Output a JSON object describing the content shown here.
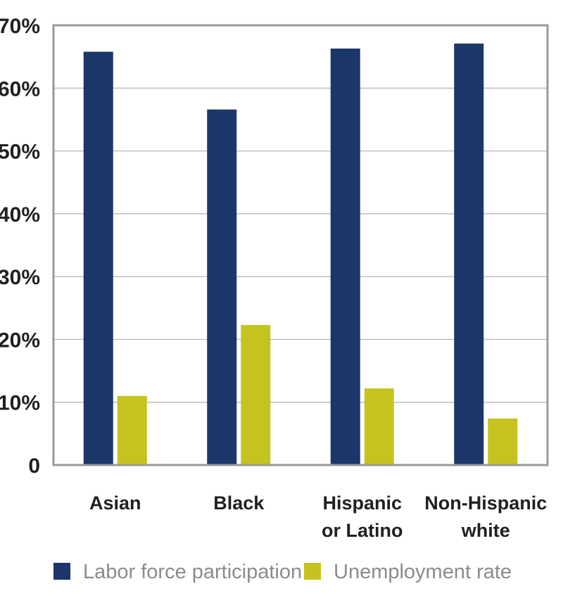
{
  "chart_data": {
    "type": "bar",
    "title": "",
    "xlabel": "",
    "ylabel": "",
    "categories": [
      "Asian",
      "Black",
      "Hispanic or Latino",
      "Non-Hispanic white"
    ],
    "category_lines": [
      [
        "Asian"
      ],
      [
        "Black"
      ],
      [
        "Hispanic",
        "or Latino"
      ],
      [
        "Non-Hispanic",
        "white"
      ]
    ],
    "series": [
      {
        "name": "Labor force participation",
        "values": [
          65.8,
          56.6,
          66.3,
          67.1
        ]
      },
      {
        "name": "Unemployment rate",
        "values": [
          11.0,
          22.3,
          12.2,
          7.4
        ]
      }
    ],
    "ylim": [
      0,
      70
    ],
    "yticks": [
      0,
      10,
      20,
      30,
      40,
      50,
      60,
      70
    ],
    "ytick_labels": [
      "0",
      "10%",
      "20%",
      "30%",
      "40%",
      "50%",
      "60%",
      "70%"
    ],
    "grid": true,
    "legend_position": "bottom-left",
    "colors": {
      "labor": "#1b3668",
      "unemployment": "#c5c31f",
      "grid": "#b3b3b3",
      "frame": "#999999",
      "tick_text": "#231f20",
      "legend_text": "#8c8c8c"
    }
  }
}
